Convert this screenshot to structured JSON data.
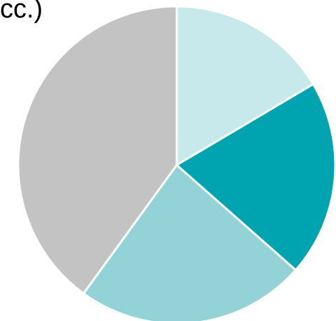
{
  "chart_data": {
    "type": "pie",
    "title": "cc.)",
    "slices": [
      {
        "value": 16.5,
        "color": "#c8e9ec"
      },
      {
        "value": 20.0,
        "color": "#00a3b0"
      },
      {
        "value": 23.5,
        "color": "#93d3d8"
      },
      {
        "value": 40.0,
        "color": "#c3c3c3"
      }
    ],
    "start_angle_deg": 0,
    "direction": "clockwise"
  }
}
